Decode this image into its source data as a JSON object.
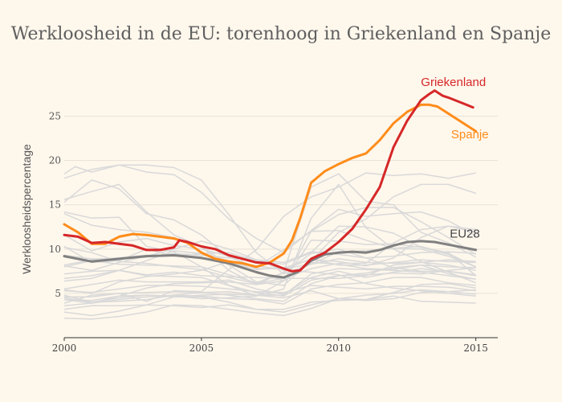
{
  "chart_data": {
    "type": "line",
    "title": "Werkloosheid in de EU: torenhoog in Griekenland en Spanje",
    "xlabel": "",
    "ylabel": "Werkloosheidspercentage",
    "xlim": [
      2000,
      2015.8
    ],
    "ylim": [
      0,
      29.5
    ],
    "xticks": [
      "2000",
      "2005",
      "2010",
      "2015"
    ],
    "yticks": [
      "5",
      "10",
      "15",
      "20",
      "25"
    ],
    "grid": true,
    "colors": {
      "background": "#fef7ec",
      "background_lines": "#d9d9d9",
      "griekenland": "#d62728",
      "spanje": "#ff8c1a",
      "eu28": "#808080"
    },
    "series": [
      {
        "name": "Griekenland",
        "color": "#d62728",
        "x": [
          2000.0,
          2000.5,
          2001.0,
          2001.5,
          2002.0,
          2002.5,
          2003.0,
          2003.5,
          2004.0,
          2004.2,
          2004.5,
          2005.0,
          2005.5,
          2006.0,
          2006.5,
          2007.0,
          2007.5,
          2008.0,
          2008.3,
          2008.6,
          2009.0,
          2009.5,
          2010.0,
          2010.5,
          2011.0,
          2011.5,
          2012.0,
          2012.5,
          2013.0,
          2013.3,
          2013.5,
          2013.8,
          2014.0,
          2014.5,
          2014.9
        ],
        "y": [
          11.6,
          11.4,
          10.7,
          10.8,
          10.6,
          10.4,
          9.9,
          9.9,
          10.2,
          11.0,
          10.8,
          10.3,
          10.0,
          9.3,
          8.9,
          8.5,
          8.4,
          7.8,
          7.5,
          7.6,
          8.9,
          9.6,
          10.8,
          12.3,
          14.5,
          17.0,
          21.5,
          24.5,
          26.8,
          27.5,
          27.9,
          27.3,
          27.1,
          26.5,
          26.0
        ]
      },
      {
        "name": "Spanje",
        "color": "#ff8c1a",
        "x": [
          2000.0,
          2000.5,
          2001.0,
          2001.5,
          2002.0,
          2002.5,
          2003.0,
          2003.5,
          2004.0,
          2004.5,
          2005.0,
          2005.5,
          2006.0,
          2006.5,
          2007.0,
          2007.5,
          2008.0,
          2008.3,
          2008.6,
          2009.0,
          2009.5,
          2010.0,
          2010.5,
          2011.0,
          2011.5,
          2012.0,
          2012.5,
          2013.0,
          2013.3,
          2013.6,
          2014.0,
          2014.5,
          2015.0
        ],
        "y": [
          12.8,
          11.9,
          10.6,
          10.6,
          11.4,
          11.7,
          11.6,
          11.4,
          11.2,
          10.7,
          9.6,
          8.9,
          8.6,
          8.4,
          8.0,
          8.5,
          9.5,
          11.0,
          13.5,
          17.5,
          18.8,
          19.6,
          20.3,
          20.8,
          22.3,
          24.2,
          25.5,
          26.3,
          26.3,
          26.1,
          25.3,
          24.3,
          23.3
        ]
      },
      {
        "name": "EU28",
        "color": "#808080",
        "x": [
          2000.0,
          2001.0,
          2002.0,
          2003.0,
          2004.0,
          2005.0,
          2006.0,
          2007.0,
          2007.5,
          2008.0,
          2008.5,
          2009.0,
          2009.5,
          2010.0,
          2010.5,
          2011.0,
          2011.5,
          2012.0,
          2012.5,
          2013.0,
          2013.5,
          2014.0,
          2014.5,
          2015.0
        ],
        "y": [
          9.2,
          8.6,
          8.9,
          9.2,
          9.3,
          9.0,
          8.4,
          7.4,
          7.0,
          6.8,
          7.4,
          8.7,
          9.4,
          9.6,
          9.7,
          9.6,
          9.9,
          10.4,
          10.8,
          10.9,
          10.8,
          10.5,
          10.2,
          9.9
        ]
      }
    ]
  },
  "background_series": [
    {
      "x": [
        2000,
        2000.4,
        2001,
        2002,
        2003,
        2004,
        2005,
        2006,
        2007,
        2008,
        2009,
        2010,
        2011,
        2012,
        2013,
        2014,
        2015
      ],
      "y": [
        18.5,
        19.3,
        18.7,
        19.5,
        19.5,
        19.2,
        17.8,
        13.9,
        9.6,
        7.2,
        8.3,
        9.7,
        9.8,
        10.1,
        10.3,
        9.5,
        8.0
      ]
    },
    {
      "x": [
        2000,
        2001,
        2002,
        2003,
        2004,
        2005,
        2006,
        2007,
        2008,
        2009,
        2010,
        2011,
        2012,
        2013,
        2014,
        2015
      ],
      "y": [
        18.0,
        19.0,
        19.5,
        18.7,
        18.4,
        16.4,
        13.4,
        11.2,
        9.6,
        12.1,
        14.5,
        13.7,
        14.0,
        14.2,
        13.2,
        11.5
      ]
    },
    {
      "x": [
        2000,
        2001,
        2002,
        2003,
        2004,
        2005,
        2006,
        2007,
        2008,
        2009,
        2010,
        2011,
        2012,
        2013,
        2014,
        2015
      ],
      "y": [
        14.2,
        13.5,
        13.6,
        10.3,
        9.7,
        8.0,
        5.9,
        4.7,
        5.5,
        13.5,
        17.3,
        12.4,
        10.0,
        8.6,
        7.4,
        6.2
      ]
    },
    {
      "x": [
        2000,
        2001,
        2002,
        2003,
        2004,
        2005,
        2006,
        2007,
        2008,
        2009,
        2010,
        2011,
        2012,
        2013,
        2014,
        2015
      ],
      "y": [
        15.6,
        16.5,
        17.3,
        14.2,
        11.6,
        10.3,
        7.6,
        6.0,
        7.4,
        17.0,
        18.5,
        15.4,
        15.0,
        11.9,
        10.7,
        9.1
      ]
    },
    {
      "x": [
        2000,
        2001,
        2002,
        2003,
        2004,
        2005,
        2006,
        2007,
        2008,
        2009,
        2010,
        2011,
        2012,
        2013,
        2014,
        2015
      ],
      "y": [
        14.0,
        12.7,
        12.2,
        11.9,
        11.3,
        10.3,
        8.2,
        6.3,
        5.9,
        8.7,
        11.9,
        13.4,
        15.9,
        17.3,
        17.3,
        16.3
      ]
    },
    {
      "x": [
        2000,
        2001,
        2002,
        2003,
        2004,
        2005,
        2006,
        2007,
        2008,
        2009,
        2010,
        2011,
        2012,
        2013,
        2014,
        2015
      ],
      "y": [
        15.3,
        17.8,
        16.8,
        14.0,
        13.3,
        11.6,
        9.1,
        8.0,
        9.9,
        12.0,
        12.1,
        11.0,
        10.1,
        10.0,
        9.2,
        8.0
      ]
    },
    {
      "x": [
        2000,
        2001,
        2002,
        2003,
        2004,
        2005,
        2006,
        2007,
        2008,
        2009,
        2010,
        2011,
        2012,
        2013,
        2014,
        2015
      ],
      "y": [
        4.5,
        4.0,
        4.5,
        4.8,
        4.7,
        4.4,
        4.5,
        4.7,
        6.4,
        12.0,
        13.9,
        14.7,
        14.7,
        13.1,
        11.3,
        9.4
      ]
    },
    {
      "x": [
        2000,
        2001,
        2002,
        2003,
        2004,
        2005,
        2006,
        2007,
        2008,
        2009,
        2010,
        2011,
        2012,
        2013,
        2014,
        2015
      ],
      "y": [
        3.9,
        4.8,
        5.0,
        4.1,
        5.3,
        5.2,
        7.7,
        9.9,
        13.7,
        15.9,
        17.0,
        18.6,
        18.3,
        18.5,
        18.0,
        18.6
      ]
    },
    {
      "x": [
        2000,
        2001,
        2002,
        2003,
        2004,
        2005,
        2006,
        2007,
        2008,
        2009,
        2010,
        2011,
        2012,
        2013,
        2014,
        2015
      ],
      "y": [
        6.4,
        6.7,
        7.6,
        8.7,
        9.8,
        9.5,
        9.6,
        8.7,
        8.3,
        9.6,
        12.6,
        12.5,
        11.8,
        10.2,
        9.6,
        7.0
      ]
    },
    {
      "x": [
        2000,
        2001,
        2002,
        2003,
        2004,
        2005,
        2006,
        2007,
        2008,
        2009,
        2010,
        2011,
        2012,
        2013,
        2014,
        2015
      ],
      "y": [
        10.2,
        9.6,
        8.6,
        8.4,
        8.0,
        7.7,
        6.8,
        6.1,
        6.7,
        7.8,
        8.4,
        8.4,
        10.7,
        12.2,
        12.6,
        11.9
      ]
    },
    {
      "x": [
        2000,
        2001,
        2002,
        2003,
        2004,
        2005,
        2006,
        2007,
        2008,
        2009,
        2010,
        2011,
        2012,
        2013,
        2014,
        2015
      ],
      "y": [
        10.3,
        8.5,
        8.7,
        10.0,
        9.2,
        9.5,
        8.7,
        7.7,
        7.9,
        8.8,
        8.6,
        8.1,
        9.0,
        11.3,
        12.6,
        12.2
      ]
    },
    {
      "x": [
        2000,
        2001,
        2002,
        2003,
        2004,
        2005,
        2006,
        2007,
        2008,
        2009,
        2010,
        2011,
        2012,
        2013,
        2014,
        2015
      ],
      "y": [
        11.6,
        9.8,
        10.8,
        11.2,
        10.4,
        10.0,
        9.2,
        7.8,
        7.8,
        8.3,
        8.9,
        8.5,
        8.4,
        8.5,
        8.2,
        7.6
      ]
    },
    {
      "x": [
        2000,
        2001,
        2002,
        2003,
        2004,
        2005,
        2006,
        2007,
        2008,
        2009,
        2010,
        2011,
        2012,
        2013,
        2014,
        2015
      ],
      "y": [
        8.0,
        8.7,
        8.3,
        8.2,
        8.1,
        8.0,
        7.1,
        6.2,
        7.3,
        9.5,
        10.0,
        9.0,
        7.9,
        7.5,
        7.5,
        7.0
      ]
    },
    {
      "x": [
        2000,
        2001,
        2002,
        2003,
        2004,
        2005,
        2006,
        2007,
        2008,
        2009,
        2010,
        2011,
        2012,
        2013,
        2014,
        2015
      ],
      "y": [
        8.2,
        8.8,
        9.0,
        9.3,
        9.3,
        8.9,
        8.6,
        8.1,
        7.7,
        8.9,
        8.2,
        8.2,
        8.5,
        8.8,
        8.6,
        8.5
      ]
    },
    {
      "x": [
        2000,
        2001,
        2002,
        2003,
        2004,
        2005,
        2006,
        2007,
        2008,
        2009,
        2010,
        2011,
        2012,
        2013,
        2014,
        2015
      ],
      "y": [
        5.4,
        5.0,
        6.3,
        6.9,
        7.2,
        7.6,
        8.6,
        7.5,
        6.4,
        11.0,
        10.9,
        10.5,
        10.6,
        10.2,
        9.4,
        8.0
      ]
    },
    {
      "x": [
        2000,
        2001,
        2002,
        2003,
        2004,
        2005,
        2006,
        2007,
        2008,
        2009,
        2010,
        2011,
        2012,
        2013,
        2014,
        2015
      ],
      "y": [
        6.7,
        7.0,
        7.6,
        7.1,
        7.4,
        7.0,
        6.9,
        6.8,
        6.7,
        6.7,
        6.7,
        7.0,
        8.2,
        8.5,
        8.8,
        8.6
      ]
    },
    {
      "x": [
        2000,
        2001,
        2002,
        2003,
        2004,
        2005,
        2006,
        2007,
        2008,
        2009,
        2010,
        2011,
        2012,
        2013,
        2014,
        2015
      ],
      "y": [
        4.8,
        4.0,
        4.1,
        4.3,
        4.8,
        5.1,
        5.2,
        4.8,
        4.8,
        7.2,
        7.8,
        7.7,
        7.6,
        7.4,
        7.0,
        6.6
      ]
    },
    {
      "x": [
        2000,
        2001,
        2002,
        2003,
        2004,
        2005,
        2006,
        2007,
        2008,
        2009,
        2010,
        2011,
        2012,
        2013,
        2014,
        2015
      ],
      "y": [
        4.6,
        4.6,
        5.0,
        5.1,
        5.2,
        5.1,
        4.8,
        4.4,
        4.1,
        6.1,
        7.0,
        7.1,
        7.3,
        7.2,
        7.6,
        7.9
      ]
    },
    {
      "x": [
        2000,
        2001,
        2002,
        2003,
        2004,
        2005,
        2006,
        2007,
        2008,
        2009,
        2010,
        2011,
        2012,
        2013,
        2014,
        2015
      ],
      "y": [
        4.3,
        4.2,
        4.7,
        5.6,
        6.1,
        6.2,
        6.3,
        6.0,
        6.4,
        8.5,
        8.3,
        7.8,
        7.7,
        8.2,
        7.2,
        6.6
      ]
    },
    {
      "x": [
        2000,
        2001,
        2002,
        2003,
        2004,
        2005,
        2006,
        2007,
        2008,
        2009,
        2010,
        2011,
        2012,
        2013,
        2014,
        2015
      ],
      "y": [
        5.5,
        6.0,
        6.5,
        6.3,
        6.3,
        6.3,
        6.5,
        5.5,
        4.9,
        6.8,
        7.5,
        6.8,
        7.4,
        7.8,
        7.5,
        7.1
      ]
    },
    {
      "x": [
        2000,
        2001,
        2002,
        2003,
        2004,
        2005,
        2006,
        2007,
        2008,
        2009,
        2010,
        2011,
        2012,
        2013,
        2014,
        2015
      ],
      "y": [
        3.6,
        3.9,
        4.3,
        4.6,
        4.8,
        4.7,
        4.4,
        4.3,
        3.8,
        5.5,
        6.0,
        6.2,
        6.8,
        6.8,
        6.2,
        5.9
      ]
    },
    {
      "x": [
        2000,
        2001,
        2002,
        2003,
        2004,
        2005,
        2006,
        2007,
        2008,
        2009,
        2010,
        2011,
        2012,
        2013,
        2014,
        2015
      ],
      "y": [
        2.9,
        2.5,
        3.0,
        3.7,
        4.6,
        4.6,
        4.0,
        3.2,
        2.9,
        3.7,
        4.4,
        4.3,
        5.1,
        6.0,
        6.1,
        5.6
      ]
    },
    {
      "x": [
        2000,
        2001,
        2002,
        2003,
        2004,
        2005,
        2006,
        2007,
        2008,
        2009,
        2010,
        2011,
        2012,
        2013,
        2014,
        2015
      ],
      "y": [
        2.2,
        2.1,
        2.4,
        2.9,
        3.7,
        3.6,
        3.2,
        2.8,
        2.5,
        3.3,
        4.4,
        4.8,
        5.0,
        5.4,
        5.2,
        4.9
      ]
    },
    {
      "x": [
        2000,
        2001,
        2002,
        2003,
        2004,
        2005,
        2006,
        2007,
        2008,
        2009,
        2010,
        2011,
        2012,
        2013,
        2014,
        2015
      ],
      "y": [
        4.3,
        3.9,
        4.7,
        4.8,
        4.6,
        4.8,
        4.9,
        4.8,
        4.5,
        5.3,
        4.4,
        4.2,
        4.4,
        5.1,
        5.2,
        5.4
      ]
    },
    {
      "x": [
        2000,
        2001,
        2002,
        2003,
        2004,
        2005,
        2006,
        2007,
        2008,
        2009,
        2010,
        2011,
        2012,
        2013,
        2014,
        2015
      ],
      "y": [
        3.2,
        3.6,
        3.6,
        3.7,
        3.6,
        3.4,
        3.7,
        3.2,
        3.2,
        4.0,
        4.2,
        4.3,
        4.7,
        4.1,
        4.0,
        3.9
      ]
    },
    {
      "x": [
        2000,
        2001,
        2002,
        2003,
        2004,
        2005,
        2006,
        2007,
        2008,
        2009,
        2010,
        2011,
        2012,
        2013,
        2014,
        2015
      ],
      "y": [
        5.3,
        5.1,
        5.5,
        5.9,
        5.9,
        5.8,
        5.5,
        5.2,
        5.1,
        5.9,
        5.7,
        5.5,
        5.8,
        5.8,
        5.7,
        5.3
      ]
    },
    {
      "x": [
        2000,
        2001,
        2002,
        2003,
        2004,
        2005,
        2006,
        2007,
        2008,
        2009,
        2010,
        2011,
        2012,
        2013,
        2014,
        2015
      ],
      "y": [
        7.2,
        7.5,
        7.6,
        7.0,
        6.9,
        6.8,
        5.9,
        5.1,
        4.7,
        6.5,
        7.0,
        7.3,
        7.9,
        8.2,
        8.0,
        7.9
      ]
    },
    {
      "x": [
        2000,
        2001,
        2002,
        2003,
        2004,
        2005,
        2006,
        2007,
        2008,
        2009,
        2010,
        2011,
        2012,
        2013,
        2014,
        2015
      ],
      "y": [
        9.3,
        8.9,
        8.9,
        9.1,
        9.5,
        9.3,
        9.0,
        8.8,
        8.5,
        9.7,
        9.4,
        9.0,
        9.2,
        9.6,
        9.7,
        9.5
      ]
    },
    {
      "x": [
        2000,
        2001,
        2002,
        2003,
        2004,
        2005,
        2006,
        2007,
        2008,
        2009,
        2010,
        2011,
        2012,
        2013,
        2014,
        2015
      ],
      "y": [
        8.1,
        7.6,
        8.5,
        9.2,
        10.0,
        10.9,
        10.0,
        8.8,
        7.6,
        7.4,
        7.1,
        6.1,
        5.6,
        5.3,
        5.0,
        4.7
      ]
    }
  ]
}
